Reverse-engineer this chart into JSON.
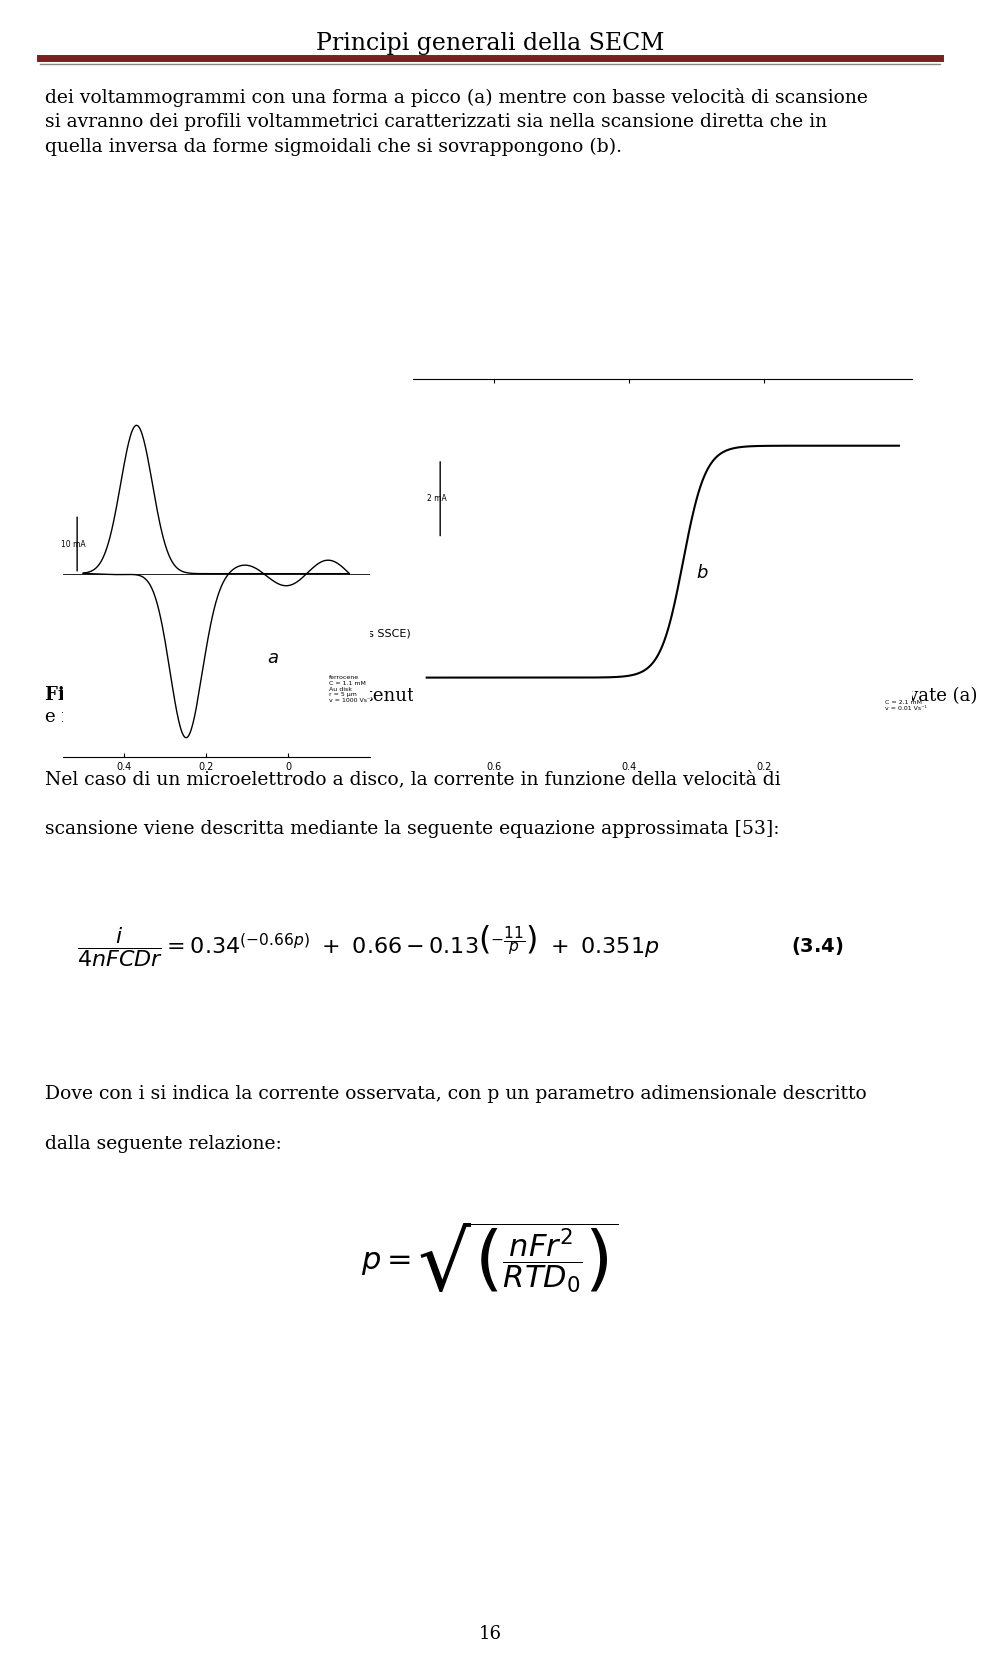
{
  "page_title": "Principi generali della SECM",
  "header_line_color1": "#7B2020",
  "header_line_color2": "#C0C0C0",
  "body_text_lines": [
    "dei voltammogrammi con una forma a picco (a) mentre con basse velocità di scansione",
    "si avranno dei profili voltammetrici caratterizzati sia nella scansione diretta che in",
    "quella inversa da forme sigmoidali che si sovrappongono (b)."
  ],
  "figure_caption_bold": "Figura 3.5",
  "figure_caption_line1": ": tipici voltammogrammi ottenuti utilizzando microelettrodi a velocità di scansione elevate (a)",
  "figure_caption_line2": "e ridotte (b).",
  "paragraph2_line1": "Nel caso di un microelettrodo a disco, la corrente in funzione della velocità di",
  "paragraph2_line2": "scansione viene descritta mediante la seguente equazione approssimata [53]:",
  "paragraph3_line1": "Dove con i si indica la corrente osservata, con p un parametro adimensionale descritto",
  "paragraph3_line2": "dalla seguente relazione:",
  "page_number": "16",
  "background_color": "#ffffff",
  "text_color": "#000000",
  "title_font_size": 17,
  "body_font_size": 13.5,
  "caption_font_size": 13,
  "label_a": "a",
  "label_b": "b",
  "fig_annotation_a": "ferrocene\nC = 1.1 mM\nAu disk\nr = 5 μm\nv = 1000 Vs⁻¹",
  "fig_annotation_b": "C = 2.1 mM\nv = 0.01 Vs⁻¹",
  "fig_scale_a": "10 mA",
  "fig_scale_b": "2 mA",
  "fig_xlabel": "E(V vs SSCE)"
}
